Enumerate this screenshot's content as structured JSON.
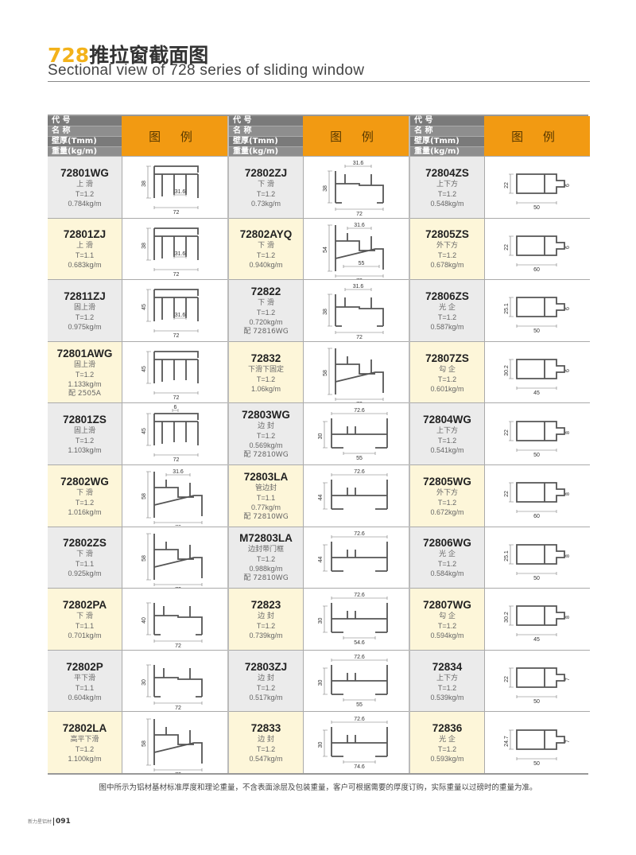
{
  "header": {
    "title_num": "728",
    "title_cn": "推拉窗截面图",
    "title_en": "Sectional view of 728 series of sliding window"
  },
  "table_header": {
    "code": "代 号",
    "name": "名 称",
    "thickness": "壁厚(Tmm)",
    "weight": "重量(kg/m)",
    "legend": "图 例"
  },
  "colors": {
    "accent": "#f29a12",
    "title_num": "#f3b21a",
    "header_gray": "#7a7a7a",
    "row_gray": "#ebebeb",
    "row_yellow": "#fdf6d9"
  },
  "columns": [
    [
      {
        "code": "72801WG",
        "name": "上 滑",
        "t": "T=1.2",
        "weight": "0.784kg/m",
        "shape": "top",
        "h": "38",
        "w": "72",
        "inner": "31.6"
      },
      {
        "code": "72801ZJ",
        "name": "上 滑",
        "t": "T=1.1",
        "weight": "0.683kg/m",
        "shape": "top",
        "h": "38",
        "w": "72",
        "inner": "31.6"
      },
      {
        "code": "72811ZJ",
        "name": "固上滑",
        "t": "T=1.2",
        "weight": "0.975kg/m",
        "shape": "top",
        "h": "45",
        "w": "72",
        "inner": "31.6"
      },
      {
        "code": "72801AWG",
        "name": "固上滑",
        "t": "T=1.2",
        "weight": "1.133kg/m",
        "note": "配 2505A",
        "shape": "top",
        "h": "45",
        "w": "72"
      },
      {
        "code": "72801ZS",
        "name": "固上滑",
        "t": "T=1.2",
        "weight": "1.103kg/m",
        "shape": "top",
        "h": "45",
        "w": "72",
        "topdim": "6"
      },
      {
        "code": "72802WG",
        "name": "下 滑",
        "t": "T=1.2",
        "weight": "1.016kg/m",
        "shape": "bottom",
        "h": "58",
        "w": "72",
        "topdim": "31.6"
      },
      {
        "code": "72802ZS",
        "name": "下 滑",
        "t": "T=1.1",
        "weight": "0.925kg/m",
        "shape": "bottom",
        "h": "58",
        "w": "72"
      },
      {
        "code": "72802PA",
        "name": "下 滑",
        "t": "T=1.1",
        "weight": "0.701kg/m",
        "shape": "flat",
        "h": "40",
        "w": "72"
      },
      {
        "code": "72802P",
        "name": "平下滑",
        "t": "T=1.1",
        "weight": "0.604kg/m",
        "shape": "flat",
        "h": "30",
        "w": "72"
      },
      {
        "code": "72802LA",
        "name": "高平下滑",
        "t": "T=1.2",
        "weight": "1.100kg/m",
        "shape": "bottom",
        "h": "58",
        "w": "72"
      }
    ],
    [
      {
        "code": "72802ZJ",
        "name": "下 滑",
        "t": "T=1.2",
        "weight": "0.73kg/m",
        "shape": "flat",
        "h": "38",
        "w": "72",
        "topdim": "31.6"
      },
      {
        "code": "72802AYQ",
        "name": "下 滑",
        "t": "T=1.2",
        "weight": "0.940kg/m",
        "shape": "bottom",
        "h": "54",
        "w": "72",
        "topdim": "31.6",
        "inner": "55"
      },
      {
        "code": "72822",
        "name": "下 滑",
        "t": "T=1.2",
        "weight": "0.720kg/m",
        "note": "配 72816WG",
        "shape": "flat",
        "h": "38",
        "w": "72",
        "topdim": "31.6"
      },
      {
        "code": "72832",
        "name": "下滑下固定",
        "t": "T=1.2",
        "weight": "1.06kg/m",
        "shape": "bottom",
        "h": "58",
        "w": "72"
      },
      {
        "code": "72803WG",
        "name": "边 封",
        "t": "T=1.2",
        "weight": "0.569kg/m",
        "note": "配 72810WG",
        "shape": "seal",
        "h": "30",
        "topdim": "72.6",
        "w": "55"
      },
      {
        "code": "72803LA",
        "name": "管边封",
        "t": "T=1.1",
        "weight": "0.77kg/m",
        "note": "配 72810WG",
        "shape": "seal",
        "h": "44",
        "topdim": "72.6"
      },
      {
        "code": "M72803LA",
        "name": "边封带门框",
        "t": "T=1.2",
        "weight": "0.988kg/m",
        "note": "配 72810WG",
        "shape": "seal",
        "h": "44",
        "topdim": "72.6"
      },
      {
        "code": "72823",
        "name": "边 封",
        "t": "T=1.2",
        "weight": "0.739kg/m",
        "shape": "seal",
        "h": "30",
        "topdim": "72.6",
        "w": "54.6"
      },
      {
        "code": "72803ZJ",
        "name": "边 封",
        "t": "T=1.2",
        "weight": "0.517kg/m",
        "shape": "seal",
        "h": "30",
        "topdim": "72.6",
        "w": "55"
      },
      {
        "code": "72833",
        "name": "边 封",
        "t": "T=1.2",
        "weight": "0.547kg/m",
        "shape": "seal",
        "h": "30",
        "topdim": "72.6",
        "w": "74.6"
      }
    ],
    [
      {
        "code": "72804ZS",
        "name": "上下方",
        "t": "T=1.2",
        "weight": "0.548kg/m",
        "shape": "box",
        "h": "22",
        "w": "50",
        "tab": "6"
      },
      {
        "code": "72805ZS",
        "name": "外下方",
        "t": "T=1.2",
        "weight": "0.678kg/m",
        "shape": "box",
        "h": "22",
        "w": "60",
        "tab": "6"
      },
      {
        "code": "72806ZS",
        "name": "光 企",
        "t": "T=1.2",
        "weight": "0.587kg/m",
        "shape": "box",
        "h": "25.1",
        "w": "50",
        "tab": "6"
      },
      {
        "code": "72807ZS",
        "name": "勾 企",
        "t": "T=1.2",
        "weight": "0.601kg/m",
        "shape": "box",
        "h": "30.2",
        "w": "45",
        "tab": "6"
      },
      {
        "code": "72804WG",
        "name": "上下方",
        "t": "T=1.2",
        "weight": "0.541kg/m",
        "shape": "box",
        "h": "22",
        "w": "50",
        "tab": "8"
      },
      {
        "code": "72805WG",
        "name": "外下方",
        "t": "T=1.2",
        "weight": "0.672kg/m",
        "shape": "box",
        "h": "22",
        "w": "60",
        "tab": "8"
      },
      {
        "code": "72806WG",
        "name": "光 企",
        "t": "T=1.2",
        "weight": "0.584kg/m",
        "shape": "box",
        "h": "25.1",
        "w": "50",
        "tab": "8"
      },
      {
        "code": "72807WG",
        "name": "勾 企",
        "t": "T=1.2",
        "weight": "0.594kg/m",
        "shape": "box",
        "h": "30.2",
        "w": "45",
        "tab": "8"
      },
      {
        "code": "72834",
        "name": "上下方",
        "t": "T=1.2",
        "weight": "0.539kg/m",
        "shape": "box",
        "h": "22",
        "w": "50",
        "tab": "7"
      },
      {
        "code": "72836",
        "name": "光 企",
        "t": "T=1.2",
        "weight": "0.593kg/m",
        "shape": "box",
        "h": "24.7",
        "w": "50",
        "tab": "7"
      }
    ]
  ],
  "footnote": "图中所示为铝材基材标准厚度和理论重量，不含表面涂层及包装重量，客户可根据需要的厚度订购，实际重量以过磅时的重量为准。",
  "footer": {
    "brand": "新力星铝材",
    "page": "091"
  }
}
